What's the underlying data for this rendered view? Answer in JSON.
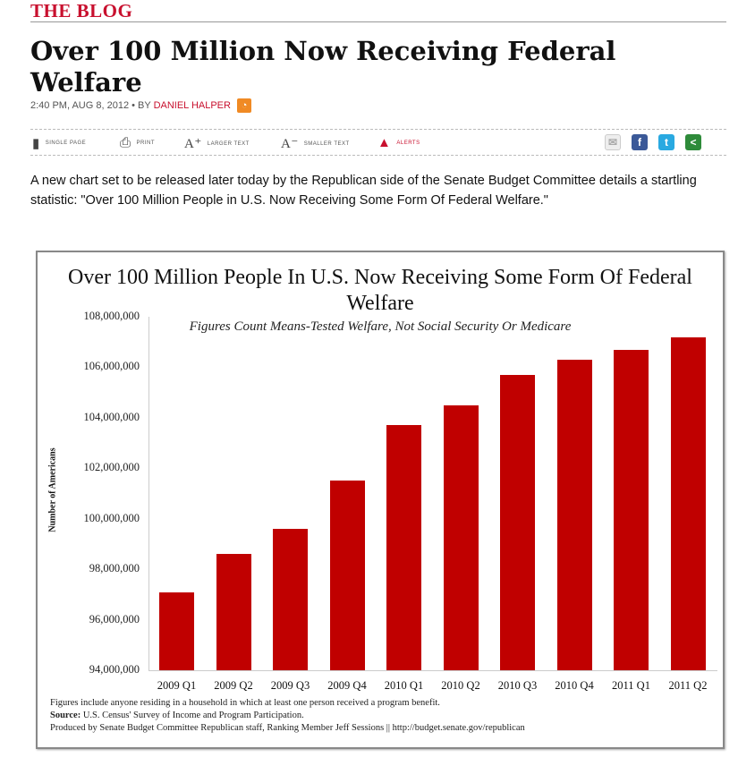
{
  "blog_label": "THE BLOG",
  "headline": "Over 100 Million Now Receiving Federal Welfare",
  "byline": {
    "time": "2:40 PM, AUG 8, 2012 • BY ",
    "author": "DANIEL HALPER"
  },
  "toolbar": {
    "single_page": "SINGLE PAGE",
    "print": "PRINT",
    "larger_text": "LARGER TEXT",
    "smaller_text": "SMALLER TEXT",
    "alerts": "ALERTS"
  },
  "icons": [
    "page-icon",
    "printer-icon",
    "larger-text-icon",
    "smaller-text-icon",
    "alert-icon",
    "email-icon",
    "facebook-icon",
    "twitter-icon",
    "share-icon",
    "rss-icon"
  ],
  "colors": {
    "accent": "#c8102e",
    "bar": "#c00000",
    "facebook": "#3b5998",
    "twitter": "#29a9e1",
    "share": "#2e8b3a"
  },
  "intro": "A new chart set to be released later today by the Republican side of the Senate Budget Committee details a startling statistic: \"Over 100 Million People in U.S. Now Receiving Some Form Of Federal Welfare.\"",
  "chart_data": {
    "type": "bar",
    "title": "Over 100 Million People In U.S. Now Receiving Some Form Of Federal Welfare",
    "subtitle": "Figures Count Means-Tested Welfare, Not Social Security Or Medicare",
    "xlabel": "",
    "ylabel": "Number of Americans",
    "categories": [
      "2009 Q1",
      "2009 Q2",
      "2009 Q3",
      "2009 Q4",
      "2010 Q1",
      "2010 Q2",
      "2010 Q3",
      "2010 Q4",
      "2011 Q1",
      "2011 Q2"
    ],
    "values": [
      97100000,
      98600000,
      99600000,
      101500000,
      103700000,
      104500000,
      105700000,
      106300000,
      106700000,
      107200000
    ],
    "ylim": [
      94000000,
      108000000
    ],
    "yticks": [
      "94,000,000",
      "96,000,000",
      "98,000,000",
      "100,000,000",
      "102,000,000",
      "104,000,000",
      "106,000,000",
      "108,000,000"
    ],
    "grid": false,
    "legend": "none",
    "notes": {
      "line1": "Figures include anyone residing in a household in which at least one person received a program benefit.",
      "source_label": "Source:",
      "source": " U.S. Census' Survey of Income and Program Participation.",
      "line3": "Produced by Senate Budget Committee Republican staff, Ranking Member Jeff Sessions || http://budget.senate.gov/republican"
    }
  }
}
